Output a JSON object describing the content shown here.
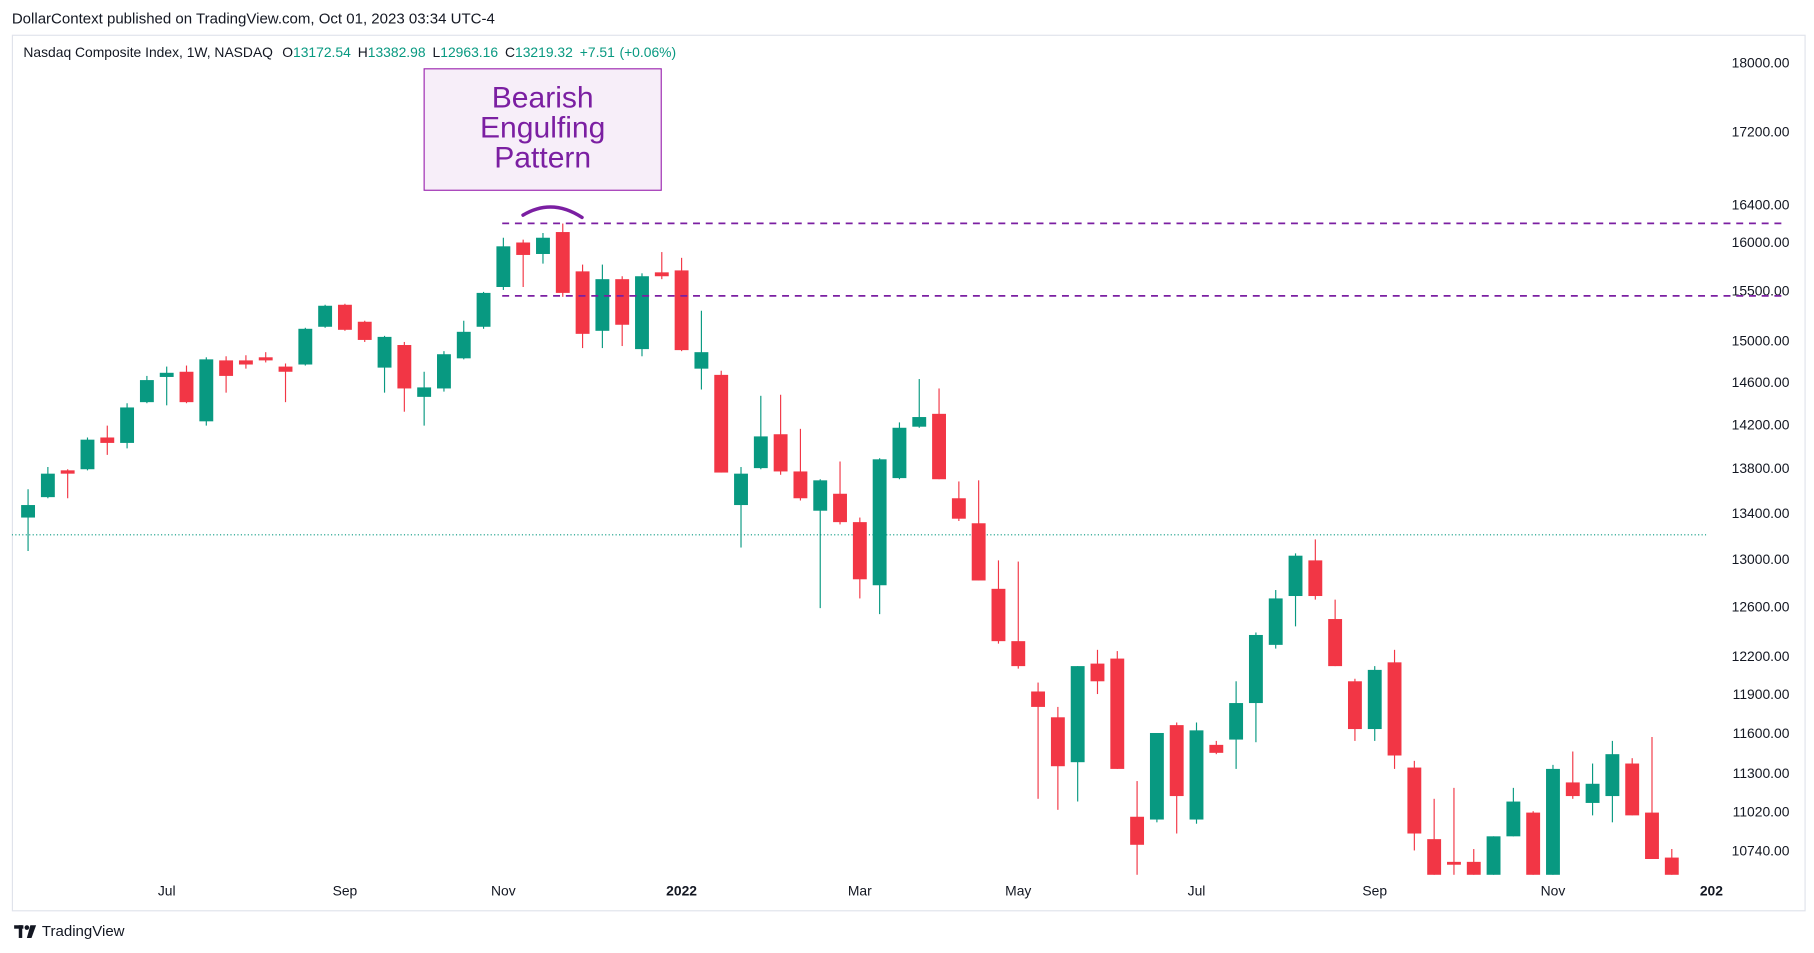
{
  "header": "DollarContext published on TradingView.com, Oct 01, 2023 03:34 UTC-4",
  "footer": "TradingView",
  "chart_data": {
    "type": "candlestick",
    "title": "Nasdaq Composite Index, 1W, NASDAQ",
    "legend": [
      {
        "label": "O",
        "value": 13172.54
      },
      {
        "label": "H",
        "value": 13382.98
      },
      {
        "label": "L",
        "value": 12963.16
      },
      {
        "label": "C",
        "value": 13219.32
      }
    ],
    "change": {
      "value": 7.51,
      "label": "+7.51"
    },
    "change_pct": {
      "value": 0.06,
      "label": "(+0.06%)"
    },
    "log_scale": true,
    "up_color": "#089981",
    "down_color": "#f23645",
    "ylim": [
      10575,
      18345
    ],
    "yticks": [
      {
        "value": 18000,
        "label": "18000.00"
      },
      {
        "value": 17200,
        "label": "17200.00"
      },
      {
        "value": 16400,
        "label": "16400.00"
      },
      {
        "value": 16000,
        "label": "16000.00"
      },
      {
        "value": 15500,
        "label": "15500.00"
      },
      {
        "value": 15000,
        "label": "15000.00"
      },
      {
        "value": 14600,
        "label": "14600.00"
      },
      {
        "value": 14200,
        "label": "14200.00"
      },
      {
        "value": 13800,
        "label": "13800.00"
      },
      {
        "value": 13400,
        "label": "13400.00"
      },
      {
        "value": 13000,
        "label": "13000.00"
      },
      {
        "value": 12600,
        "label": "12600.00"
      },
      {
        "value": 12200,
        "label": "12200.00"
      },
      {
        "value": 11900,
        "label": "11900.00"
      },
      {
        "value": 11600,
        "label": "11600.00"
      },
      {
        "value": 11300,
        "label": "11300.00"
      },
      {
        "value": 11020,
        "label": "11020.00"
      },
      {
        "value": 10740,
        "label": "10740.00"
      }
    ],
    "xlim": [
      -0.82,
      89.7
    ],
    "xticks": [
      {
        "value": 7,
        "label": "Jul"
      },
      {
        "value": 16,
        "label": "Sep"
      },
      {
        "value": 24,
        "label": "Nov"
      },
      {
        "value": 33,
        "label": "2022",
        "bold": true
      },
      {
        "value": 42,
        "label": "Mar"
      },
      {
        "value": 50,
        "label": "May"
      },
      {
        "value": 59,
        "label": "Jul"
      },
      {
        "value": 68,
        "label": "Sep"
      },
      {
        "value": 77,
        "label": "Nov"
      },
      {
        "value": 85,
        "label": "202",
        "bold": true
      }
    ],
    "open": [
      13370,
      13550,
      13790,
      13800,
      14090,
      14040,
      14420,
      14660,
      14710,
      14240,
      14820,
      14820,
      14850,
      14760,
      14780,
      15150,
      15370,
      15200,
      14750,
      14970,
      14470,
      14550,
      14840,
      15150,
      15550,
      16010,
      15890,
      16120,
      15710,
      15110,
      15630,
      14930,
      15700,
      15720,
      14740,
      14680,
      13480,
      13810,
      14120,
      13780,
      13430,
      13580,
      13330,
      12790,
      13720,
      14190,
      14310,
      13540,
      13320,
      12760,
      12330,
      11930,
      11730,
      11390,
      12150,
      12190,
      10990,
      10970,
      11670,
      10970,
      11520,
      11560,
      11840,
      12300,
      12700,
      13000,
      12510,
      12010,
      11640,
      12160,
      11350,
      10830,
      10670,
      10670,
      10580,
      10850,
      11020,
      10580,
      11240,
      11090,
      11140,
      11380,
      11020,
      10700
    ],
    "high": [
      13620,
      13820,
      13800,
      14090,
      14200,
      14410,
      14670,
      14760,
      14770,
      14850,
      14860,
      14870,
      14900,
      14790,
      15140,
      15370,
      15380,
      15210,
      15060,
      15000,
      14710,
      14910,
      15210,
      15500,
      16060,
      16040,
      16110,
      16210,
      15780,
      15780,
      15660,
      15690,
      15910,
      15850,
      15310,
      14720,
      13820,
      14480,
      14490,
      14170,
      13710,
      13870,
      13370,
      13900,
      14230,
      14640,
      14550,
      13690,
      13700,
      13000,
      12990,
      12000,
      11810,
      12130,
      12260,
      12250,
      11250,
      11610,
      11690,
      11690,
      11550,
      12010,
      12400,
      12750,
      13060,
      13180,
      12670,
      12030,
      12130,
      12260,
      11400,
      11120,
      11200,
      10760,
      10850,
      11200,
      11030,
      11370,
      11470,
      11380,
      11550,
      11420,
      11580,
      10760
    ],
    "low": [
      13080,
      13540,
      13540,
      13790,
      13930,
      13990,
      14410,
      14390,
      14410,
      14200,
      14510,
      14740,
      14800,
      14420,
      14770,
      15140,
      15110,
      15000,
      14510,
      14330,
      14200,
      14520,
      14830,
      15130,
      15520,
      15550,
      15790,
      15450,
      14940,
      14940,
      14960,
      14860,
      15630,
      14910,
      14540,
      13770,
      13110,
      13800,
      13750,
      13520,
      12600,
      13310,
      12680,
      12550,
      13710,
      14180,
      13710,
      13340,
      12830,
      12310,
      12110,
      11120,
      11040,
      11100,
      11910,
      11340,
      10580,
      10950,
      10870,
      10940,
      11450,
      11340,
      11540,
      12270,
      12450,
      12670,
      12130,
      11550,
      11550,
      11340,
      10750,
      10580,
      10580,
      10580,
      10580,
      10850,
      10580,
      10580,
      11120,
      11000,
      10950,
      11000,
      10690,
      10580
    ],
    "close": [
      13480,
      13760,
      13760,
      14070,
      14040,
      14370,
      14630,
      14700,
      14420,
      14830,
      14670,
      14780,
      14820,
      14710,
      15130,
      15360,
      15120,
      15020,
      15050,
      14550,
      14560,
      14880,
      15100,
      15490,
      15970,
      15880,
      16060,
      15490,
      15080,
      15630,
      15170,
      15660,
      15660,
      14920,
      14900,
      13770,
      13760,
      14100,
      13780,
      13540,
      13700,
      13330,
      12840,
      13890,
      14180,
      14280,
      13710,
      13360,
      12830,
      12330,
      12130,
      11810,
      11360,
      12130,
      12010,
      11340,
      10790,
      11610,
      11140,
      11630,
      11460,
      11840,
      12380,
      12680,
      13040,
      12700,
      12130,
      11640,
      12100,
      11440,
      10870,
      10580,
      10650,
      10580,
      10850,
      11100,
      10580,
      11340,
      11140,
      11230,
      11450,
      11000,
      10690,
      10580
    ],
    "levels": [
      {
        "value": 16212,
        "color": "#7b1fa2"
      },
      {
        "value": 15460,
        "color": "#7b1fa2"
      }
    ],
    "annotation": [
      "Bearish",
      "Engulfing",
      "Pattern"
    ],
    "annotation_color": "#7b1fa2"
  }
}
